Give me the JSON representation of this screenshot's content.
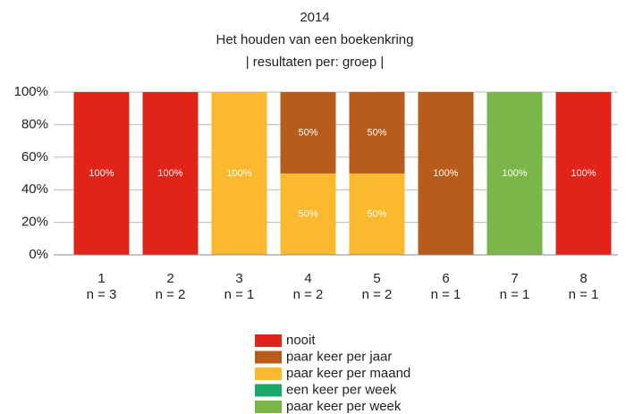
{
  "chart_data": {
    "type": "stacked_bar",
    "title": [
      "2014",
      "Het houden van een boekenkring",
      "| resultaten per: groep |"
    ],
    "categories": [
      "1",
      "2",
      "3",
      "4",
      "5",
      "6",
      "7",
      "8"
    ],
    "category_notes": [
      "n = 3",
      "n = 2",
      "n = 1",
      "n = 2",
      "n = 2",
      "n = 1",
      "n = 1",
      "n = 1"
    ],
    "series": [
      {
        "name": "nooit",
        "color": "#e2231a",
        "values": [
          100,
          100,
          null,
          null,
          null,
          null,
          null,
          100
        ],
        "value_labels": [
          "100%",
          "100%",
          null,
          null,
          null,
          null,
          null,
          "100%"
        ]
      },
      {
        "name": "paar keer per jaar",
        "color": "#b85c1c",
        "values": [
          null,
          null,
          null,
          50,
          50,
          100,
          null,
          null
        ],
        "value_labels": [
          null,
          null,
          null,
          "50%",
          "50%",
          "100%",
          null,
          null
        ]
      },
      {
        "name": "paar keer per maand",
        "color": "#fbb92d",
        "values": [
          null,
          null,
          100,
          50,
          50,
          null,
          null,
          null
        ],
        "value_labels": [
          null,
          null,
          "100%",
          "50%",
          "50%",
          null,
          null,
          null
        ]
      },
      {
        "name": "een keer per week",
        "color": "#1aa86a",
        "values": [
          null,
          null,
          null,
          null,
          null,
          null,
          null,
          null
        ],
        "value_labels": [
          null,
          null,
          null,
          null,
          null,
          null,
          null,
          null
        ]
      },
      {
        "name": "paar keer per week",
        "color": "#7ab648",
        "values": [
          null,
          null,
          null,
          null,
          null,
          null,
          100,
          null
        ],
        "value_labels": [
          null,
          null,
          null,
          null,
          null,
          null,
          "100%",
          null
        ]
      }
    ],
    "ylim": [
      0,
      100
    ],
    "yticks": [
      {
        "value": 0,
        "label": "0%"
      },
      {
        "value": 20,
        "label": "20%"
      },
      {
        "value": 40,
        "label": "40%"
      },
      {
        "value": 60,
        "label": "60%"
      },
      {
        "value": 80,
        "label": "80%"
      },
      {
        "value": 100,
        "label": "100%"
      }
    ],
    "grid": true
  }
}
